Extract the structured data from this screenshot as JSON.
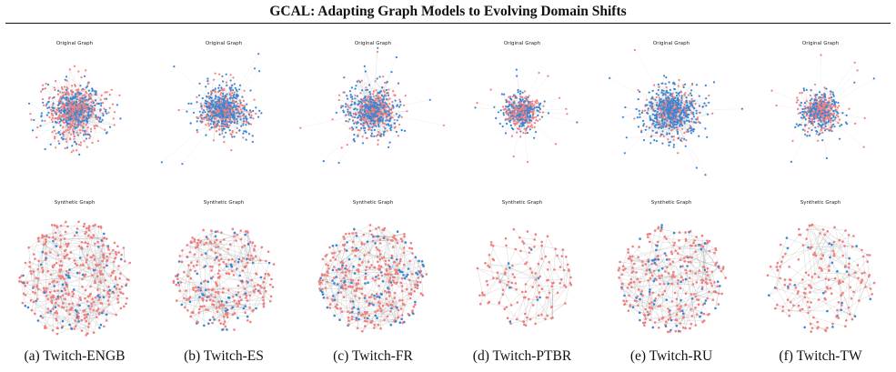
{
  "header": {
    "running_title": "GCAL: Adapting Graph Models to Evolving Domain Shifts"
  },
  "figure": {
    "row_titles": {
      "original": "Original Graph",
      "synthetic": "Synthetic Graph"
    },
    "node_colors": {
      "class_a": "#3a86d4",
      "class_b": "#f08080"
    },
    "edge_color": "#9a9a9a",
    "panels": [
      {
        "caption": "(a) Twitch-ENGB",
        "icon": "network-graph-icon"
      },
      {
        "caption": "(b) Twitch-ES",
        "icon": "network-graph-icon"
      },
      {
        "caption": "(c) Twitch-FR",
        "icon": "network-graph-icon"
      },
      {
        "caption": "(d) Twitch-PTBR",
        "icon": "network-graph-icon"
      },
      {
        "caption": "(e) Twitch-RU",
        "icon": "network-graph-icon"
      },
      {
        "caption": "(f) Twitch-TW",
        "icon": "network-graph-icon"
      }
    ]
  }
}
